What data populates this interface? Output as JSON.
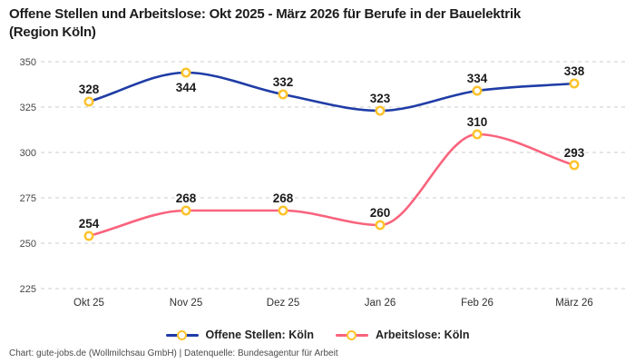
{
  "title_lines": [
    "Offene Stellen und Arbeitslose: Okt 2025 - März 2026 für Berufe in der Bauelektrik",
    "(Region Köln)"
  ],
  "footer": "Chart: gute-jobs.de (Wollmilchsau GmbH) | Datenquelle: Bundesagentur für Arbeit",
  "colors": {
    "open_positions_line": "#1f3ca6",
    "unemployed_line": "#f9637d",
    "marker_ring": "#fdc32d",
    "gridline": "#cccccc",
    "title_text": "#1c1c1c",
    "data_label_text": "#1a1a1a"
  },
  "chart_data": {
    "type": "line",
    "categories": [
      "Okt 25",
      "Nov 25",
      "Dez 25",
      "Jan 26",
      "Feb 26",
      "März 26"
    ],
    "series": [
      {
        "name": "Offene Stellen: Köln",
        "color": "#1f3ca6",
        "marker_color": "#fdc32d",
        "values": [
          328,
          344,
          332,
          323,
          334,
          338
        ],
        "label_positions": [
          "above",
          "below",
          "above",
          "above",
          "above",
          "above"
        ]
      },
      {
        "name": "Arbeitslose: Köln",
        "color": "#f9637d",
        "marker_color": "#fdc32d",
        "values": [
          254,
          268,
          268,
          260,
          310,
          293
        ],
        "label_positions": [
          "above",
          "above",
          "above",
          "above",
          "above",
          "above"
        ]
      }
    ],
    "y_ticks": [
      225,
      250,
      275,
      300,
      325,
      350
    ],
    "ylim": [
      225,
      350
    ],
    "xlabel": "",
    "ylabel": "",
    "grid": "horizontal-dashed",
    "legend_position": "bottom",
    "curve": "monotone"
  }
}
